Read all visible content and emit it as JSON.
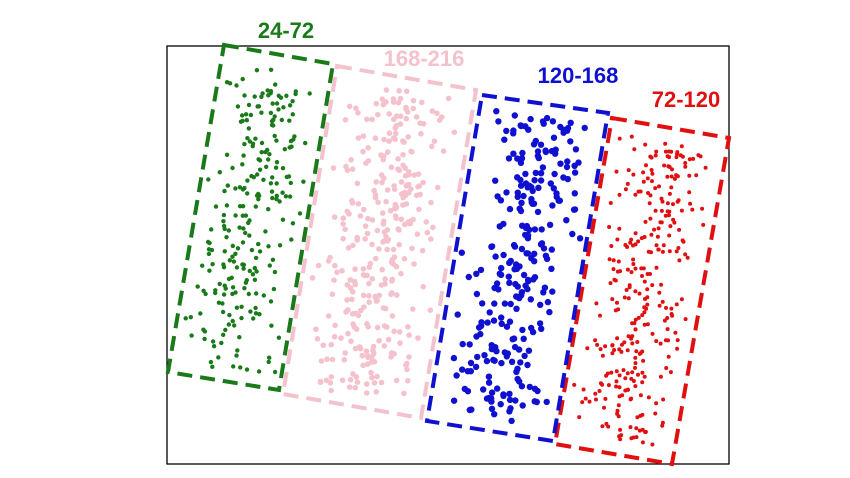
{
  "chart_data": {
    "type": "scatter",
    "title": "",
    "xlabel": "",
    "ylabel": "",
    "grid": false,
    "axes_ticks": false,
    "groups": [
      {
        "label": "24-72",
        "color": "#1a7a1a",
        "marker": "small",
        "point_count": 240
      },
      {
        "label": "168-216",
        "color": "#f4c2cc",
        "marker": "medium",
        "point_count": 320
      },
      {
        "label": "120-168",
        "color": "#1010d0",
        "marker": "large",
        "point_count": 260
      },
      {
        "label": "72-120",
        "color": "#e01010",
        "marker": "small",
        "point_count": 300
      }
    ],
    "series_order": [
      "24-72",
      "168-216",
      "72-120",
      "120-168"
    ],
    "label_order": [
      "24-72",
      "168-216",
      "120-168",
      "72-120"
    ]
  }
}
